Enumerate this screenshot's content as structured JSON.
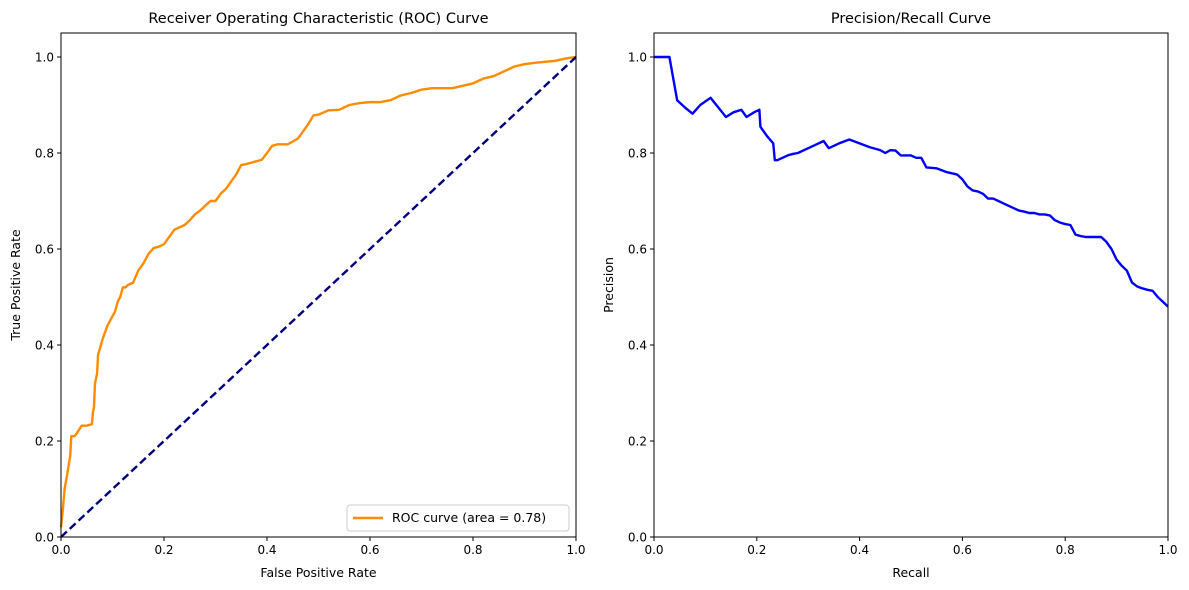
{
  "chart_data": [
    {
      "type": "line",
      "title": "Receiver Operating Characteristic (ROC) Curve",
      "xlabel": "False Positive Rate",
      "ylabel": "True Positive Rate",
      "xlim": [
        0.0,
        1.0
      ],
      "ylim": [
        0.0,
        1.05
      ],
      "xticks": [
        "0.0",
        "0.2",
        "0.4",
        "0.6",
        "0.8",
        "1.0"
      ],
      "yticks": [
        "0.0",
        "0.2",
        "0.4",
        "0.6",
        "0.8",
        "1.0"
      ],
      "grid": false,
      "legend": {
        "position": "lower-right",
        "entries": [
          "ROC curve (area = 0.78)"
        ]
      },
      "series": [
        {
          "name": "ROC curve (area = 0.78)",
          "color": "#ff8c00",
          "style": "solid",
          "x": [
            0.0,
            0.003,
            0.007,
            0.012,
            0.018,
            0.02,
            0.022,
            0.024,
            0.026,
            0.03,
            0.04,
            0.045,
            0.05,
            0.06,
            0.062,
            0.064,
            0.066,
            0.068,
            0.07,
            0.072,
            0.075,
            0.08,
            0.09,
            0.1,
            0.105,
            0.11,
            0.115,
            0.12,
            0.125,
            0.13,
            0.14,
            0.15,
            0.16,
            0.17,
            0.18,
            0.19,
            0.2,
            0.21,
            0.22,
            0.23,
            0.24,
            0.25,
            0.26,
            0.27,
            0.28,
            0.29,
            0.3,
            0.31,
            0.32,
            0.33,
            0.34,
            0.35,
            0.36,
            0.37,
            0.38,
            0.39,
            0.4,
            0.41,
            0.42,
            0.44,
            0.46,
            0.48,
            0.49,
            0.5,
            0.52,
            0.54,
            0.56,
            0.58,
            0.6,
            0.62,
            0.64,
            0.66,
            0.68,
            0.7,
            0.72,
            0.74,
            0.76,
            0.78,
            0.8,
            0.82,
            0.84,
            0.86,
            0.88,
            0.9,
            0.92,
            0.94,
            0.96,
            0.98,
            1.0
          ],
          "y": [
            0.02,
            0.05,
            0.1,
            0.13,
            0.17,
            0.21,
            0.21,
            0.21,
            0.21,
            0.215,
            0.232,
            0.232,
            0.232,
            0.235,
            0.26,
            0.27,
            0.32,
            0.33,
            0.34,
            0.38,
            0.39,
            0.41,
            0.44,
            0.46,
            0.47,
            0.49,
            0.5,
            0.52,
            0.52,
            0.525,
            0.53,
            0.555,
            0.57,
            0.59,
            0.602,
            0.605,
            0.61,
            0.625,
            0.64,
            0.645,
            0.65,
            0.66,
            0.672,
            0.68,
            0.69,
            0.7,
            0.7,
            0.715,
            0.725,
            0.74,
            0.755,
            0.775,
            0.777,
            0.78,
            0.783,
            0.786,
            0.8,
            0.815,
            0.818,
            0.818,
            0.83,
            0.86,
            0.878,
            0.88,
            0.889,
            0.89,
            0.9,
            0.904,
            0.906,
            0.906,
            0.91,
            0.92,
            0.925,
            0.932,
            0.935,
            0.935,
            0.935,
            0.94,
            0.945,
            0.955,
            0.96,
            0.97,
            0.98,
            0.985,
            0.988,
            0.99,
            0.992,
            0.997,
            1.0
          ]
        },
        {
          "name": "",
          "color": "#000080",
          "style": "dashed",
          "x": [
            0.0,
            1.0
          ],
          "y": [
            0.0,
            1.0
          ]
        }
      ]
    },
    {
      "type": "line",
      "title": "Precision/Recall Curve",
      "xlabel": "Recall",
      "ylabel": "Precision",
      "xlim": [
        0.0,
        1.0
      ],
      "ylim": [
        0.0,
        1.05
      ],
      "xticks": [
        "0.0",
        "0.2",
        "0.4",
        "0.6",
        "0.8",
        "1.0"
      ],
      "yticks": [
        "0.0",
        "0.2",
        "0.4",
        "0.6",
        "0.8",
        "1.0"
      ],
      "grid": false,
      "series": [
        {
          "name": "",
          "color": "#0000ff",
          "style": "solid",
          "x": [
            0.0,
            0.03,
            0.045,
            0.06,
            0.075,
            0.09,
            0.11,
            0.125,
            0.14,
            0.155,
            0.17,
            0.18,
            0.195,
            0.205,
            0.207,
            0.21,
            0.22,
            0.232,
            0.235,
            0.24,
            0.25,
            0.26,
            0.27,
            0.28,
            0.3,
            0.32,
            0.33,
            0.34,
            0.36,
            0.38,
            0.4,
            0.42,
            0.44,
            0.45,
            0.46,
            0.47,
            0.48,
            0.5,
            0.51,
            0.52,
            0.53,
            0.55,
            0.57,
            0.59,
            0.6,
            0.61,
            0.62,
            0.63,
            0.64,
            0.65,
            0.66,
            0.67,
            0.68,
            0.69,
            0.7,
            0.71,
            0.72,
            0.73,
            0.74,
            0.75,
            0.76,
            0.77,
            0.78,
            0.79,
            0.8,
            0.81,
            0.82,
            0.83,
            0.84,
            0.85,
            0.86,
            0.87,
            0.88,
            0.89,
            0.9,
            0.91,
            0.92,
            0.93,
            0.94,
            0.95,
            0.96,
            0.97,
            0.98,
            0.99,
            1.0
          ],
          "y": [
            1.0,
            1.0,
            0.91,
            0.895,
            0.882,
            0.9,
            0.915,
            0.895,
            0.875,
            0.885,
            0.89,
            0.875,
            0.885,
            0.89,
            0.855,
            0.85,
            0.835,
            0.82,
            0.785,
            0.785,
            0.79,
            0.795,
            0.798,
            0.8,
            0.81,
            0.82,
            0.825,
            0.81,
            0.82,
            0.828,
            0.82,
            0.812,
            0.806,
            0.8,
            0.806,
            0.805,
            0.795,
            0.795,
            0.79,
            0.79,
            0.77,
            0.768,
            0.76,
            0.755,
            0.745,
            0.73,
            0.722,
            0.72,
            0.715,
            0.705,
            0.705,
            0.7,
            0.695,
            0.69,
            0.685,
            0.68,
            0.678,
            0.675,
            0.675,
            0.672,
            0.672,
            0.67,
            0.66,
            0.655,
            0.652,
            0.65,
            0.63,
            0.627,
            0.625,
            0.625,
            0.625,
            0.625,
            0.615,
            0.6,
            0.578,
            0.565,
            0.555,
            0.53,
            0.522,
            0.518,
            0.515,
            0.513,
            0.5,
            0.49,
            0.48
          ]
        }
      ]
    }
  ]
}
